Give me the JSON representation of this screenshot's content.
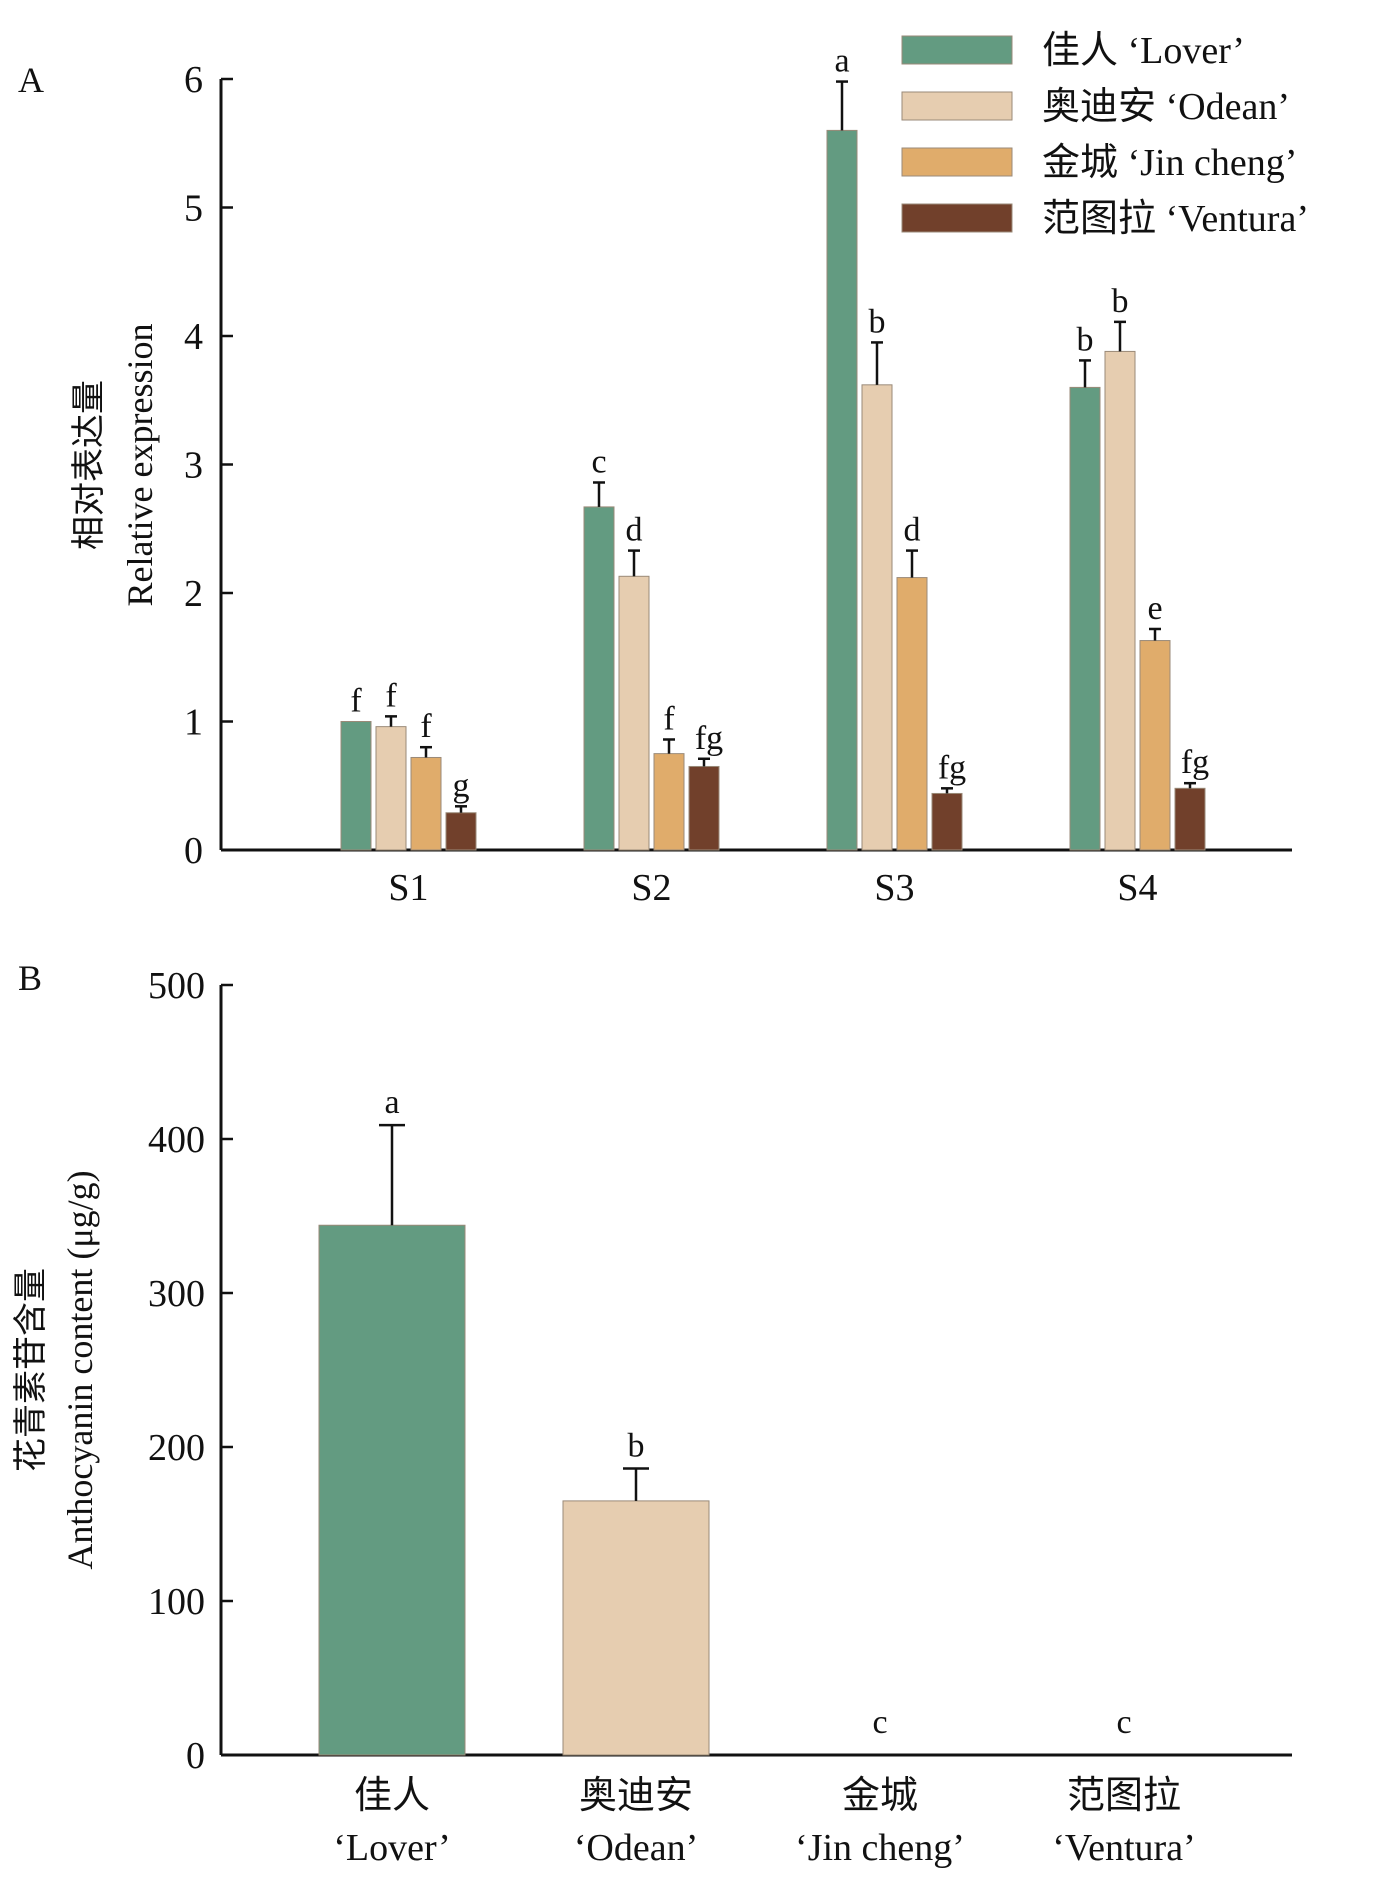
{
  "colors": {
    "lover": "#639B81",
    "odean": "#E6CDB0",
    "jincheng": "#E0AC6B",
    "ventura": "#71402B",
    "axis": "#111111",
    "bar_edge": "#9a8a78"
  },
  "chart_data": [
    {
      "panel_label": "A",
      "type": "bar",
      "ylabel_cn": "相对表达量",
      "ylabel": "Relative expression",
      "xlabel": "",
      "ylim": [
        0,
        6
      ],
      "yticks": [
        "0",
        "1",
        "2",
        "3",
        "4",
        "5",
        "6"
      ],
      "categories": [
        "S1",
        "S2",
        "S3",
        "S4"
      ],
      "legend": {
        "position": "top-right",
        "entries": [
          "佳人 ‘Lover’",
          "奥迪安 ‘Odean’",
          "金城 ‘Jin cheng’",
          "范图拉 ‘Ventura’"
        ]
      },
      "series": [
        {
          "name": "佳人 ‘Lover’",
          "color_key": "lover",
          "values": [
            1.0,
            2.67,
            5.6,
            3.6
          ],
          "errors": [
            0.0,
            0.19,
            0.38,
            0.21
          ],
          "letters": [
            "f",
            "c",
            "a",
            "b"
          ]
        },
        {
          "name": "奥迪安 ‘Odean’",
          "color_key": "odean",
          "values": [
            0.96,
            2.13,
            3.62,
            3.88
          ],
          "errors": [
            0.08,
            0.2,
            0.33,
            0.23
          ],
          "letters": [
            "f",
            "d",
            "b",
            "b"
          ]
        },
        {
          "name": "金城 ‘Jin cheng’",
          "color_key": "jincheng",
          "values": [
            0.72,
            0.75,
            2.12,
            1.63
          ],
          "errors": [
            0.08,
            0.11,
            0.21,
            0.09
          ],
          "letters": [
            "f",
            "f",
            "d",
            "e"
          ]
        },
        {
          "name": "范图拉 ‘Ventura’",
          "color_key": "ventura",
          "values": [
            0.29,
            0.65,
            0.44,
            0.48
          ],
          "errors": [
            0.05,
            0.06,
            0.04,
            0.04
          ],
          "letters": [
            "g",
            "fg",
            "fg",
            "fg"
          ]
        }
      ]
    },
    {
      "panel_label": "B",
      "type": "bar",
      "ylabel_cn": "花青素苷含量",
      "ylabel": "Anthocyanin content (μg/g)",
      "xlabel": "",
      "ylim": [
        0,
        500
      ],
      "yticks": [
        "0",
        "100",
        "200",
        "300",
        "400",
        "500"
      ],
      "categories": [
        {
          "cn": "佳人",
          "en": "‘Lover’",
          "color_key": "lover"
        },
        {
          "cn": "奥迪安",
          "en": "‘Odean’",
          "color_key": "odean"
        },
        {
          "cn": "金城",
          "en": "‘Jin cheng’",
          "color_key": "jincheng"
        },
        {
          "cn": "范图拉",
          "en": "‘Ventura’",
          "color_key": "ventura"
        }
      ],
      "values": [
        344,
        165,
        0,
        0
      ],
      "errors": [
        65,
        21,
        0,
        0
      ],
      "letters": [
        "a",
        "b",
        "c",
        "c"
      ]
    }
  ]
}
